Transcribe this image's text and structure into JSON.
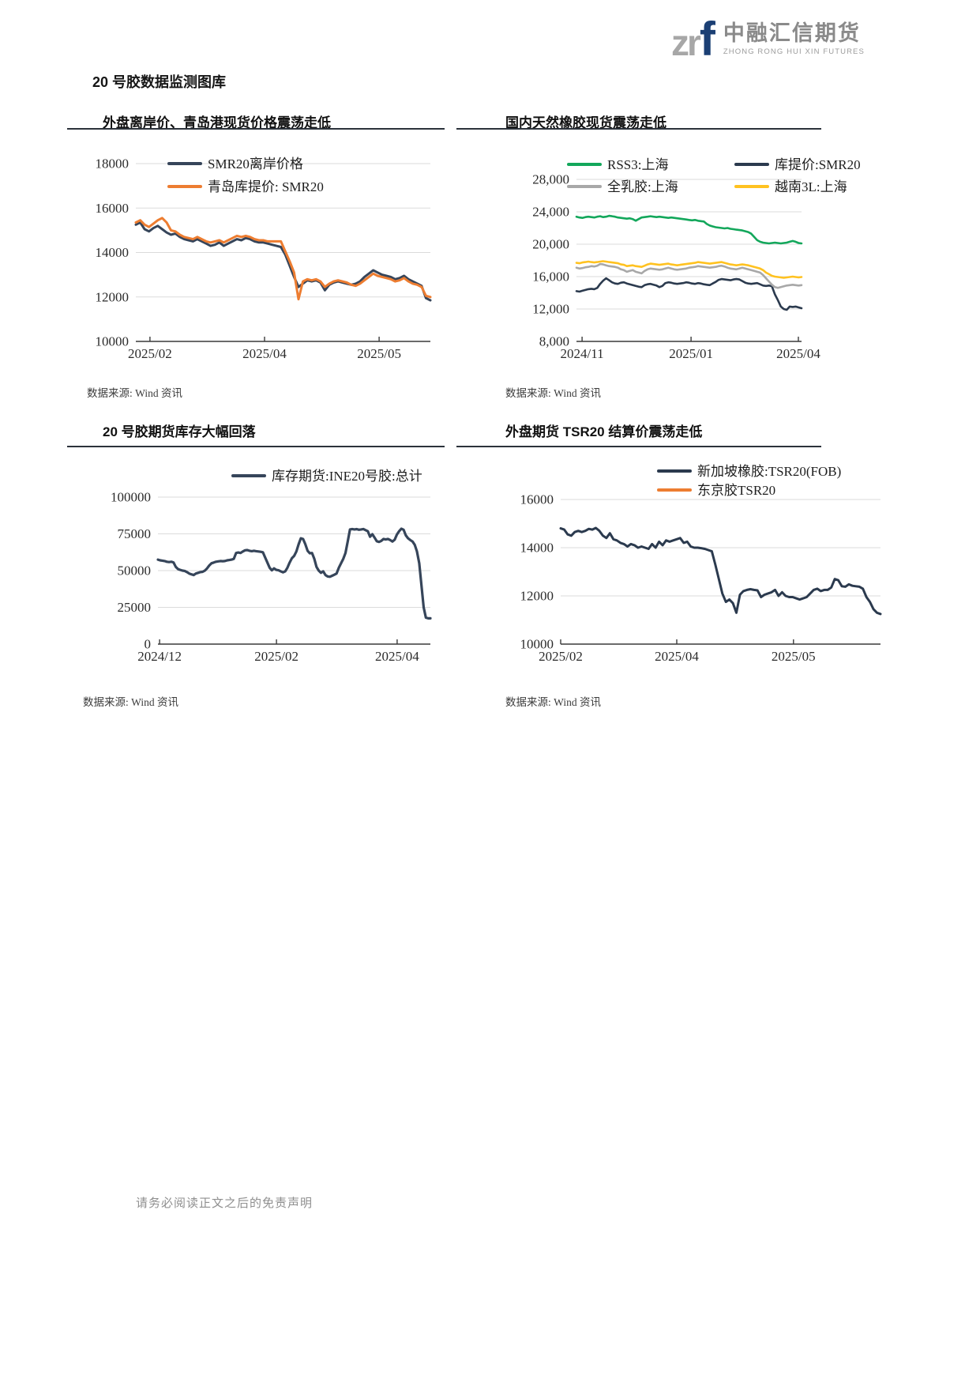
{
  "page": {
    "title": "20 号胶数据监测图库",
    "footer": "请务必阅读正文之后的免责声明"
  },
  "logo": {
    "zr": "zr",
    "f": "f",
    "cn": "中融汇信期货",
    "en": "ZHONG RONG HUI XIN FUTURES"
  },
  "chart_data": [
    {
      "type": "line",
      "title": "外盘离岸价、青岛港现货价格震荡走低",
      "source": "数据来源: Wind 资讯",
      "ylim": [
        10000,
        18000
      ],
      "grid": true,
      "legend_position": "top-left",
      "yticks": [
        {
          "label": "18000",
          "value": 18000
        },
        {
          "label": "16000",
          "value": 16000
        },
        {
          "label": "14000",
          "value": 14000
        },
        {
          "label": "12000",
          "value": 12000
        },
        {
          "label": "10000",
          "value": 10000
        }
      ],
      "xticks": [
        {
          "label": "2025/02",
          "pos": 0.048
        },
        {
          "label": "2025/04",
          "pos": 0.437
        },
        {
          "label": "2025/05",
          "pos": 0.826
        }
      ],
      "series": [
        {
          "name": "SMR20离岸价格",
          "color": "#36455A",
          "width": 3,
          "values": [
            15250,
            15350,
            15050,
            14950,
            15100,
            15200,
            15050,
            14900,
            14800,
            14850,
            14700,
            14600,
            14550,
            14500,
            14600,
            14500,
            14400,
            14300,
            14350,
            14450,
            14300,
            14400,
            14500,
            14600,
            14550,
            14650,
            14600,
            14500,
            14450,
            14450,
            14400,
            14350,
            14300,
            14250,
            13900,
            13400,
            12900,
            12450,
            12600,
            12750,
            12700,
            12750,
            12650,
            12300,
            12550,
            12650,
            12700,
            12650,
            12600,
            12550,
            12600,
            12700,
            12900,
            13050,
            13200,
            13100,
            13000,
            12950,
            12900,
            12800,
            12850,
            12950,
            12800,
            12700,
            12600,
            12500,
            11950,
            11850
          ]
        },
        {
          "name": "青岛库提价: SMR20",
          "color": "#ED7D31",
          "width": 3,
          "values": [
            15350,
            15450,
            15250,
            15150,
            15300,
            15450,
            15550,
            15350,
            15000,
            14950,
            14800,
            14700,
            14650,
            14600,
            14700,
            14600,
            14500,
            14450,
            14500,
            14550,
            14450,
            14550,
            14650,
            14750,
            14700,
            14750,
            14700,
            14600,
            14550,
            14550,
            14500,
            14500,
            14500,
            14500,
            14050,
            13600,
            13100,
            11900,
            12700,
            12800,
            12750,
            12800,
            12700,
            12450,
            12600,
            12700,
            12750,
            12700,
            12650,
            12550,
            12500,
            12600,
            12750,
            12900,
            13050,
            12950,
            12900,
            12850,
            12800,
            12700,
            12750,
            12850,
            12700,
            12600,
            12550,
            12450,
            12050,
            12000
          ]
        }
      ]
    },
    {
      "type": "line",
      "title": "国内天然橡胶现货震荡走低",
      "source": "数据来源: Wind 资讯",
      "ylim": [
        8000,
        28000
      ],
      "grid": true,
      "legend_position": "top-two-columns",
      "yticks": [
        {
          "label": "28,000",
          "value": 28000
        },
        {
          "label": "24,000",
          "value": 24000
        },
        {
          "label": "20,000",
          "value": 20000
        },
        {
          "label": "16,000",
          "value": 16000
        },
        {
          "label": "12,000",
          "value": 12000
        },
        {
          "label": "8,000",
          "value": 8000
        }
      ],
      "xticks": [
        {
          "label": "2024/11",
          "pos": 0.025
        },
        {
          "label": "2025/01",
          "pos": 0.509
        },
        {
          "label": "2025/04",
          "pos": 0.986
        }
      ],
      "series": [
        {
          "name": "RSS3:上海",
          "color": "#13A75B",
          "width": 2.6,
          "values": [
            23400,
            23300,
            23250,
            23350,
            23400,
            23350,
            23300,
            23400,
            23450,
            23350,
            23400,
            23500,
            23450,
            23400,
            23300,
            23250,
            23200,
            23150,
            23200,
            23100,
            22900,
            23100,
            23300,
            23350,
            23400,
            23450,
            23400,
            23350,
            23400,
            23350,
            23300,
            23250,
            23300,
            23250,
            23200,
            23150,
            23100,
            23050,
            23000,
            22950,
            23000,
            22900,
            22850,
            22800,
            22500,
            22300,
            22200,
            22100,
            22050,
            22000,
            21950,
            22000,
            21900,
            21850,
            21800,
            21750,
            21700,
            21600,
            21500,
            21300,
            20900,
            20500,
            20300,
            20200,
            20150,
            20100,
            20150,
            20200,
            20150,
            20100,
            20150,
            20200,
            20300,
            20400,
            20300,
            20150,
            20100
          ]
        },
        {
          "name": "库提价:SMR20",
          "color": "#2B3A4E",
          "width": 2.6,
          "values": [
            14200,
            14150,
            14250,
            14350,
            14450,
            14500,
            14450,
            14600,
            15100,
            15500,
            15800,
            15550,
            15300,
            15150,
            15100,
            15250,
            15300,
            15150,
            15050,
            14950,
            14850,
            14750,
            14700,
            14950,
            15050,
            15100,
            15000,
            14900,
            14700,
            14850,
            15200,
            15300,
            15250,
            15150,
            15100,
            15150,
            15200,
            15300,
            15250,
            15150,
            15100,
            15200,
            15150,
            15050,
            15000,
            14950,
            15150,
            15350,
            15600,
            15700,
            15650,
            15600,
            15550,
            15650,
            15700,
            15650,
            15450,
            15250,
            15150,
            15100,
            15150,
            15200,
            15050,
            14900,
            14850,
            14900,
            14800,
            13800,
            13100,
            12300,
            12000,
            11900,
            12300,
            12250,
            12300,
            12200,
            12100
          ]
        },
        {
          "name": "全乳胶:上海",
          "color": "#A8A8A8",
          "width": 2.6,
          "values": [
            17100,
            17000,
            17050,
            17150,
            17200,
            17300,
            17250,
            17350,
            17550,
            17500,
            17400,
            17300,
            17250,
            17200,
            17100,
            16900,
            16800,
            16600,
            16700,
            16800,
            16600,
            16500,
            16400,
            16700,
            16900,
            17000,
            16950,
            16900,
            16850,
            16900,
            17000,
            17100,
            17000,
            16900,
            16850,
            16900,
            16950,
            17000,
            17100,
            17150,
            17200,
            17300,
            17250,
            17200,
            17150,
            17100,
            17150,
            17200,
            17300,
            17350,
            17250,
            17100,
            17000,
            16950,
            16900,
            17000,
            17100,
            17000,
            16900,
            16800,
            16700,
            16600,
            16500,
            16200,
            15800,
            15400,
            15000,
            14700,
            14600,
            14700,
            14800,
            14900,
            14950,
            15000,
            14950,
            14900,
            14950
          ]
        },
        {
          "name": "越南3L:上海",
          "color": "#FFC220",
          "width": 2.6,
          "values": [
            17700,
            17650,
            17750,
            17800,
            17850,
            17800,
            17750,
            17800,
            17850,
            17900,
            17850,
            17800,
            17750,
            17700,
            17650,
            17500,
            17450,
            17300,
            17350,
            17400,
            17300,
            17250,
            17200,
            17350,
            17500,
            17600,
            17550,
            17500,
            17450,
            17500,
            17550,
            17600,
            17500,
            17450,
            17400,
            17450,
            17500,
            17550,
            17600,
            17650,
            17700,
            17800,
            17750,
            17700,
            17650,
            17600,
            17650,
            17700,
            17750,
            17800,
            17700,
            17600,
            17500,
            17450,
            17400,
            17450,
            17500,
            17450,
            17400,
            17300,
            17200,
            17100,
            17000,
            16800,
            16500,
            16300,
            16100,
            16000,
            15950,
            15900,
            15850,
            15900,
            15950,
            16000,
            15950,
            15900,
            15950
          ]
        }
      ]
    },
    {
      "type": "line",
      "title": "20 号胶期货库存大幅回落",
      "source": "数据来源: Wind 资讯",
      "ylim": [
        0,
        100000
      ],
      "grid": true,
      "legend_position": "top-center",
      "yticks": [
        {
          "label": "100000",
          "value": 100000
        },
        {
          "label": "75000",
          "value": 75000
        },
        {
          "label": "50000",
          "value": 50000
        },
        {
          "label": "25000",
          "value": 25000
        },
        {
          "label": "0",
          "value": 0
        }
      ],
      "xticks": [
        {
          "label": "2024/12",
          "pos": 0.006
        },
        {
          "label": "2025/02",
          "pos": 0.435
        },
        {
          "label": "2025/04",
          "pos": 0.878
        }
      ],
      "series": [
        {
          "name": "库存期货:INE20号胶:总计",
          "color": "#36455A",
          "width": 3.2,
          "values": [
            57500,
            57000,
            56800,
            56500,
            56000,
            55800,
            56000,
            55500,
            52500,
            51000,
            50500,
            50000,
            49800,
            49000,
            48000,
            47500,
            47000,
            48000,
            48500,
            49000,
            49200,
            50000,
            51500,
            53500,
            55000,
            55500,
            56000,
            56300,
            56500,
            56400,
            56500,
            57000,
            57200,
            57500,
            58000,
            62000,
            62300,
            62000,
            63000,
            63800,
            64000,
            63500,
            63200,
            63500,
            63200,
            63000,
            62800,
            62500,
            59000,
            55500,
            52000,
            50200,
            51500,
            50500,
            50200,
            49500,
            48800,
            49500,
            52000,
            55500,
            58500,
            60000,
            63000,
            68000,
            72000,
            71500,
            68000,
            63500,
            61800,
            62000,
            58000,
            52500,
            50000,
            48500,
            49500,
            47000,
            46000,
            45800,
            46500,
            47200,
            48000,
            52000,
            55000,
            58000,
            62000,
            70000,
            78000,
            78300,
            78000,
            78200,
            77800,
            78000,
            78300,
            77500,
            76800,
            73000,
            74800,
            72500,
            70000,
            69500,
            70200,
            71500,
            71200,
            71500,
            70800,
            69800,
            71000,
            74500,
            76800,
            78500,
            77800,
            74000,
            72000,
            70800,
            69800,
            67500,
            63000,
            55000,
            40000,
            25000,
            18000,
            17500,
            17500
          ]
        }
      ]
    },
    {
      "type": "line",
      "title": "外盘期货 TSR20 结算价震荡走低",
      "source": "数据来源: Wind 资讯",
      "ylim": [
        10000,
        16000
      ],
      "grid": true,
      "legend_position": "top-center",
      "yticks": [
        {
          "label": "16000",
          "value": 16000
        },
        {
          "label": "14000",
          "value": 14000
        },
        {
          "label": "12000",
          "value": 12000
        },
        {
          "label": "10000",
          "value": 10000
        }
      ],
      "xticks": [
        {
          "label": "2025/02",
          "pos": 0.0
        },
        {
          "label": "2025/04",
          "pos": 0.363
        },
        {
          "label": "2025/05",
          "pos": 0.728
        }
      ],
      "series": [
        {
          "name": "新加坡橡胶:TSR20(FOB)",
          "color": "#2B3A4E",
          "width": 3,
          "values": [
            14800,
            14750,
            14550,
            14500,
            14650,
            14700,
            14650,
            14700,
            14780,
            14750,
            14820,
            14700,
            14500,
            14400,
            14600,
            14350,
            14300,
            14200,
            14150,
            14050,
            14150,
            14100,
            14000,
            14050,
            14000,
            13950,
            14150,
            14000,
            14250,
            14100,
            14300,
            14250,
            14300,
            14350,
            14400,
            14200,
            14250,
            14050,
            14000,
            14000,
            13980,
            13950,
            13900,
            13850,
            13300,
            12700,
            12100,
            11750,
            11850,
            11700,
            11300,
            12050,
            12200,
            12250,
            12280,
            12250,
            12230,
            11950,
            12050,
            12100,
            12150,
            12250,
            12000,
            12150,
            12000,
            11950,
            11950,
            11900,
            11850,
            11900,
            11950,
            12100,
            12250,
            12300,
            12200,
            12250,
            12250,
            12350,
            12700,
            12650,
            12400,
            12380,
            12480,
            12420,
            12400,
            12380,
            12300,
            11950,
            11750,
            11450,
            11300,
            11250
          ]
        },
        {
          "name": "东京胶TSR20",
          "color": "#ED7D31",
          "width": 3,
          "values": []
        }
      ]
    }
  ]
}
